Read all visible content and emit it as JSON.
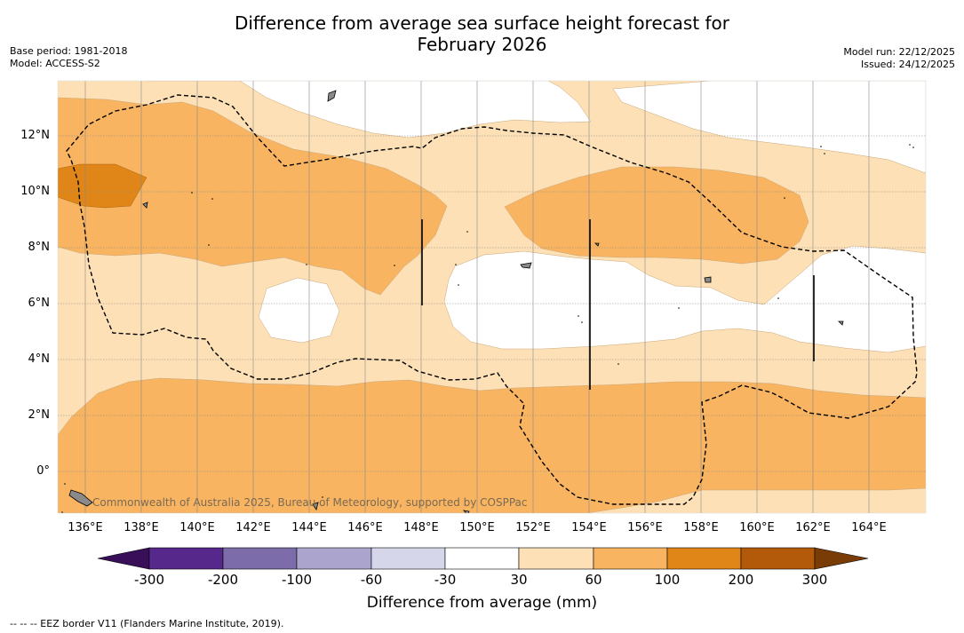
{
  "title_line1": "Difference from average sea surface height forecast for",
  "title_line2": "February 2026",
  "base_period": "Base period: 1981-2018",
  "model": "Model: ACCESS-S2",
  "model_run": "Model run: 22/12/2025",
  "issued": "Issued: 24/12/2025",
  "copyright": "Commonwealth of Australia 2025, Bureau of Meteorology, supported by COSPPac",
  "footnote": "--  --  -- EEZ border V11 (Flanders Marine Institute, 2019).",
  "lon_ticks": [
    "136°E",
    "138°E",
    "140°E",
    "142°E",
    "144°E",
    "146°E",
    "148°E",
    "150°E",
    "152°E",
    "154°E",
    "156°E",
    "158°E",
    "160°E",
    "162°E",
    "164°E"
  ],
  "lat_ticks": [
    "12°N",
    "10°N",
    "8°N",
    "6°N",
    "4°N",
    "2°N",
    "0°"
  ],
  "colorbar": {
    "title": "Difference from average (mm)",
    "labels": [
      "-300",
      "-200",
      "-100",
      "-60",
      "-30",
      "30",
      "60",
      "100",
      "200",
      "300"
    ],
    "colors": [
      "#3a0f5a",
      "#57288b",
      "#7c6ca9",
      "#aba5ce",
      "#d6d6ea",
      "#ffffff",
      "#fde0b6",
      "#f8b460",
      "#e08518",
      "#b35a0a",
      "#7a3c06"
    ]
  },
  "map_colors": {
    "ocean": "#ffffff",
    "level_30_60": "#fde0b6",
    "level_60_100": "#f8b460",
    "level_100_200": "#e08518",
    "land": "#8a8a8a"
  }
}
